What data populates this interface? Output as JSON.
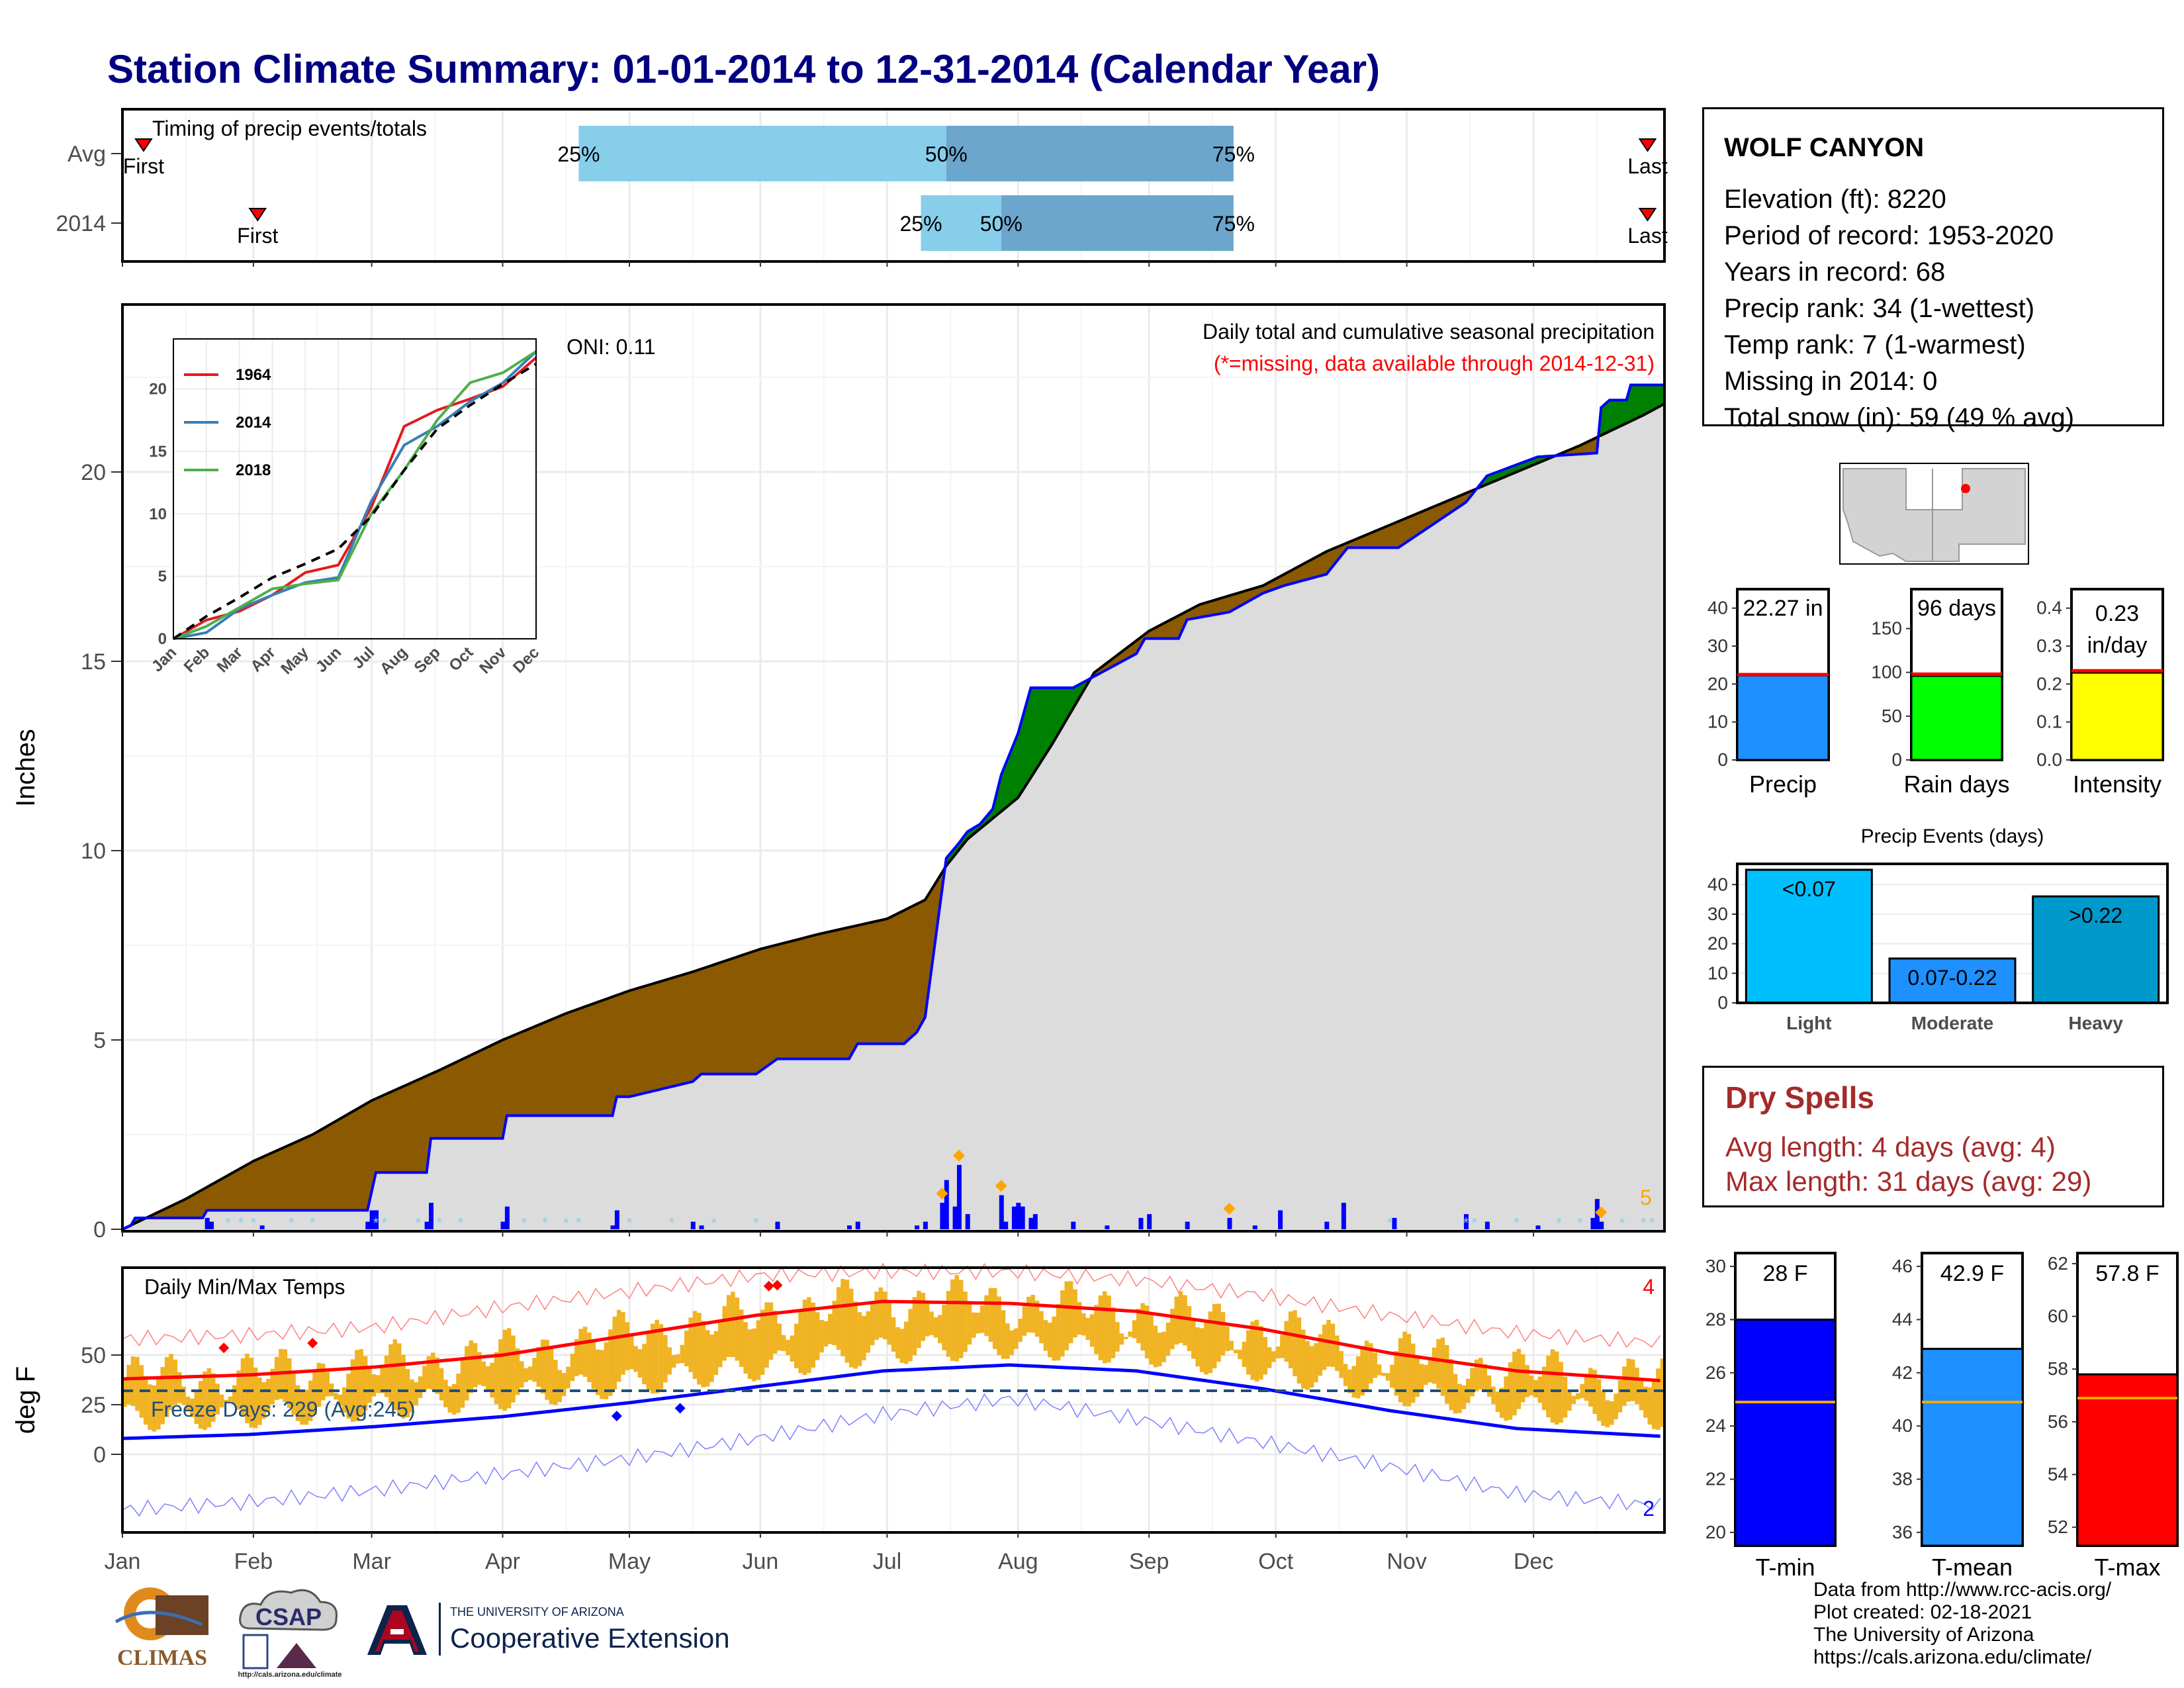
{
  "title": "Station Climate Summary: 01-01-2014 to 12-31-2014 (Calendar Year)",
  "station": {
    "name": "WOLF CANYON",
    "lines": [
      "Elevation (ft): 8220",
      "Period of record: 1953-2020",
      "Years in record: 68",
      "Precip rank: 34 (1-wettest)",
      "Temp rank: 7 (1-warmest)",
      "Missing in 2014: 0",
      "Total snow (in): 59 (49 % avg)"
    ]
  },
  "dry_spells": {
    "title": "Dry Spells",
    "avg_length": "Avg length: 4 days (avg: 4)",
    "max_length": "Max length: 31 days (avg: 29)"
  },
  "credits": [
    "Data from http://www.rcc-acis.org/",
    "Plot created: 02-18-2021",
    "The University of Arizona",
    "https://cals.arizona.edu/climate/"
  ],
  "logos": {
    "climas": "CLIMAS",
    "csap": "CSAP",
    "csap_url": "http://cals.arizona.edu/climate",
    "ua_small": "THE UNIVERSITY OF ARIZONA",
    "ua_big": "Cooperative Extension"
  },
  "colors": {
    "title": "#000080",
    "deficit": "#8B5A00",
    "surplus": "#008000",
    "avg_fill": "#DCDCDC",
    "obs_line": "#0000FF",
    "daily_bar": "#0000FF",
    "light_blue": "#87CEEB",
    "mid_blue": "#6CA6CD",
    "temp_bar": "#F0B323",
    "tmax": "#FF0000",
    "tmin": "#0000FF",
    "dry_text": "#A52A2A"
  },
  "chart_data": [
    {
      "id": "timing",
      "type": "bar",
      "title": "Timing of precip events/totals",
      "categories": [
        "Avg",
        "2014"
      ],
      "x_ticks": [
        "Jan",
        "Feb",
        "Mar",
        "Apr",
        "May",
        "Jun",
        "Jul",
        "Aug",
        "Sep",
        "Oct",
        "Nov",
        "Dec"
      ],
      "rows": [
        {
          "name": "Avg",
          "first_doy": 5,
          "last_doy": 361,
          "q25_doy": 108,
          "q50_doy": 195,
          "q75_doy": 263,
          "first_label": "First",
          "last_label": "Last",
          "q_labels": [
            "25%",
            "50%",
            "75%"
          ]
        },
        {
          "name": "2014",
          "first_doy": 32,
          "last_doy": 361,
          "q25_doy": 189,
          "q50_doy": 208,
          "q75_doy": 263,
          "first_label": "First",
          "last_label": "Last",
          "q_labels": [
            "25%",
            "50%",
            "75%"
          ]
        }
      ]
    },
    {
      "id": "cumulative_precip",
      "type": "area",
      "title": "Daily total and cumulative seasonal precipitation",
      "subtitle": "(*=missing, data available through 2014-12-31)",
      "ylabel": "Inches",
      "ylim": [
        0,
        24.5
      ],
      "y_ticks": [
        0,
        5,
        10,
        15,
        20
      ],
      "oni": "ONI: 0.11",
      "extreme_count_label": "5",
      "avg_cum": {
        "doy": [
          0,
          15,
          31,
          45,
          59,
          75,
          90,
          105,
          120,
          135,
          151,
          165,
          181,
          190,
          195,
          200,
          212,
          220,
          230,
          243,
          255,
          270,
          285,
          300,
          315,
          330,
          345,
          360,
          365
        ],
        "value": [
          0,
          0.8,
          1.8,
          2.5,
          3.4,
          4.2,
          5.0,
          5.7,
          6.3,
          6.8,
          7.4,
          7.8,
          8.2,
          8.7,
          9.6,
          10.3,
          11.4,
          12.8,
          14.7,
          15.8,
          16.5,
          17.0,
          17.9,
          18.6,
          19.3,
          20.0,
          20.7,
          21.5,
          21.8
        ]
      },
      "obs_cum": {
        "doy": [
          0,
          2,
          3,
          19,
          20,
          35,
          58,
          59,
          60,
          72,
          73,
          90,
          91,
          116,
          117,
          120,
          135,
          137,
          150,
          155,
          172,
          174,
          185,
          188,
          190,
          195,
          198,
          200,
          203,
          206,
          208,
          212,
          215,
          225,
          240,
          242,
          250,
          252,
          262,
          270,
          275,
          285,
          290,
          302,
          318,
          323,
          335,
          349,
          350,
          352,
          356,
          357,
          365
        ],
        "value": [
          0,
          0.1,
          0.3,
          0.3,
          0.5,
          0.5,
          0.5,
          1.0,
          1.5,
          1.5,
          2.4,
          2.4,
          3.0,
          3.0,
          3.5,
          3.5,
          3.9,
          4.1,
          4.1,
          4.5,
          4.5,
          4.9,
          4.9,
          5.2,
          5.6,
          9.8,
          10.2,
          10.5,
          10.7,
          11.1,
          12.0,
          13.1,
          14.3,
          14.3,
          15.2,
          15.6,
          15.6,
          16.1,
          16.3,
          16.8,
          17.0,
          17.3,
          18.0,
          18.0,
          19.2,
          19.9,
          20.4,
          20.5,
          21.7,
          21.9,
          21.9,
          22.3,
          22.3
        ]
      },
      "daily_precip": {
        "doy": [
          20,
          21,
          33,
          58,
          59,
          60,
          72,
          73,
          90,
          91,
          116,
          117,
          135,
          137,
          155,
          172,
          174,
          188,
          190,
          194,
          195,
          197,
          198,
          200,
          208,
          209,
          211,
          212,
          213,
          215,
          216,
          225,
          233,
          241,
          243,
          252,
          262,
          268,
          274,
          285,
          289,
          301,
          318,
          323,
          335,
          348,
          349,
          350
        ],
        "value": [
          0.3,
          0.2,
          0.1,
          0.2,
          0.5,
          0.5,
          0.2,
          0.7,
          0.2,
          0.6,
          0.1,
          0.5,
          0.2,
          0.1,
          0.2,
          0.1,
          0.2,
          0.1,
          0.2,
          0.7,
          1.3,
          0.6,
          1.7,
          0.4,
          0.9,
          0.2,
          0.6,
          0.7,
          0.6,
          0.3,
          0.4,
          0.2,
          0.1,
          0.3,
          0.4,
          0.2,
          0.3,
          0.1,
          0.5,
          0.2,
          0.7,
          0.3,
          0.4,
          0.2,
          0.1,
          0.3,
          0.8,
          0.2
        ]
      },
      "extreme_marks_doy": [
        194,
        198,
        208,
        262,
        350
      ]
    },
    {
      "id": "inset_cumulative",
      "type": "line",
      "x_ticks": [
        "Jan",
        "Feb",
        "Mar",
        "Apr",
        "May",
        "Jun",
        "Jul",
        "Aug",
        "Sep",
        "Oct",
        "Nov",
        "Dec"
      ],
      "y_ticks": [
        0,
        5,
        10,
        15,
        20
      ],
      "ylim": [
        0,
        24
      ],
      "series": [
        {
          "name": "1964",
          "color": "#E41A1C",
          "month_values": [
            0,
            1.5,
            2.2,
            3.5,
            5.3,
            5.9,
            10.5,
            17.0,
            18.3,
            19.2,
            20.2,
            22.5
          ]
        },
        {
          "name": "2014",
          "color": "#377EB8",
          "month_values": [
            0,
            0.5,
            2.4,
            3.5,
            4.5,
            4.9,
            11.0,
            15.5,
            17.0,
            19.0,
            20.5,
            23.0
          ]
        },
        {
          "name": "2018",
          "color": "#4DAF4A",
          "month_values": [
            0,
            1.0,
            2.5,
            4.0,
            4.4,
            4.7,
            10.0,
            13.5,
            17.5,
            20.5,
            21.3,
            23.0
          ]
        },
        {
          "name": "",
          "color": "#000000",
          "dashed": true,
          "month_values": [
            0,
            1.8,
            3.3,
            4.9,
            6.0,
            7.2,
            9.8,
            13.5,
            16.8,
            18.7,
            20.4,
            22.0
          ]
        }
      ]
    },
    {
      "id": "temperature",
      "type": "line",
      "title": "Daily Min/Max Temps",
      "ylabel": "deg F",
      "ylim": [
        -38,
        95
      ],
      "y_ticks": [
        0,
        25,
        50
      ],
      "freeze_label": "Freeze Days: 229 (Avg:245)",
      "freeze_line": 32,
      "record_high_count": "4",
      "record_low_count": "2",
      "x_ticks": [
        "Jan",
        "Feb",
        "Mar",
        "Apr",
        "May",
        "Jun",
        "Jul",
        "Aug",
        "Sep",
        "Oct",
        "Nov",
        "Dec"
      ],
      "avg_tmax": {
        "doy": [
          0,
          30,
          60,
          90,
          120,
          150,
          180,
          210,
          240,
          270,
          300,
          330,
          365
        ],
        "value": [
          38,
          40,
          44,
          50,
          60,
          70,
          77,
          76,
          72,
          63,
          51,
          42,
          37
        ]
      },
      "avg_tmin": {
        "doy": [
          0,
          30,
          60,
          90,
          120,
          150,
          180,
          210,
          240,
          270,
          300,
          330,
          365
        ],
        "value": [
          8,
          10,
          14,
          19,
          26,
          34,
          42,
          45,
          42,
          33,
          22,
          13,
          9
        ]
      },
      "record_high": {
        "doy": [
          0,
          30,
          60,
          90,
          120,
          150,
          180,
          210,
          240,
          270,
          300,
          330,
          365
        ],
        "value": [
          58,
          60,
          64,
          74,
          82,
          90,
          92,
          92,
          88,
          80,
          70,
          61,
          56
        ]
      },
      "record_low": {
        "doy": [
          0,
          30,
          60,
          90,
          120,
          150,
          180,
          210,
          240,
          270,
          300,
          330,
          365
        ],
        "value": [
          -28,
          -24,
          -18,
          -10,
          -2,
          8,
          20,
          28,
          18,
          6,
          -6,
          -20,
          -26
        ]
      },
      "record_high_doy": [
        24,
        45,
        153,
        155
      ],
      "record_low_doy": [
        117,
        132
      ]
    },
    {
      "id": "summary_bars",
      "type": "bar",
      "panels": [
        {
          "name": "Precip",
          "label": "22.27 in",
          "value": 22.27,
          "avg": 22.5,
          "ylim": [
            0,
            45
          ],
          "ticks": [
            0,
            10,
            20,
            30,
            40
          ],
          "color": "#1E90FF"
        },
        {
          "name": "Rain days",
          "label": "96 days",
          "value": 96,
          "avg": 98,
          "ylim": [
            0,
            195
          ],
          "ticks": [
            0,
            50,
            100,
            150
          ],
          "color": "#00FF00"
        },
        {
          "name": "Intensity",
          "label": "0.23",
          "label2": "in/day",
          "value": 0.23,
          "avg": 0.235,
          "ylim": [
            0,
            0.45
          ],
          "ticks": [
            "0.0",
            "0.1",
            "0.2",
            "0.3",
            "0.4"
          ],
          "color": "#FFFF00"
        }
      ]
    },
    {
      "id": "precip_events",
      "type": "bar",
      "title": "Precip Events (days)",
      "categories": [
        "Light",
        "Moderate",
        "Heavy"
      ],
      "labels": [
        "<0.07",
        "0.07-0.22",
        ">0.22"
      ],
      "values": [
        45,
        15,
        36
      ],
      "ylim": [
        0,
        47
      ],
      "y_ticks": [
        0,
        10,
        20,
        30,
        40
      ],
      "colors": [
        "#00BFFF",
        "#1E90FF",
        "#0099CC"
      ]
    },
    {
      "id": "temp_bars",
      "type": "bar",
      "panels": [
        {
          "name": "T-min",
          "label": "28 F",
          "value": 28,
          "avg": 24.9,
          "ylim": [
            19.5,
            30.5
          ],
          "ticks": [
            20,
            22,
            24,
            26,
            28,
            30
          ],
          "color": "#0000FF"
        },
        {
          "name": "T-mean",
          "label": "42.9 F",
          "value": 42.9,
          "avg": 40.9,
          "ylim": [
            35.5,
            46.5
          ],
          "ticks": [
            36,
            38,
            40,
            42,
            44,
            46
          ],
          "color": "#1E90FF"
        },
        {
          "name": "T-max",
          "label": "57.8 F",
          "value": 57.8,
          "avg": 56.9,
          "ylim": [
            51.3,
            62.4
          ],
          "ticks": [
            52,
            54,
            56,
            58,
            60,
            62
          ],
          "color": "#FF0000"
        }
      ]
    }
  ]
}
